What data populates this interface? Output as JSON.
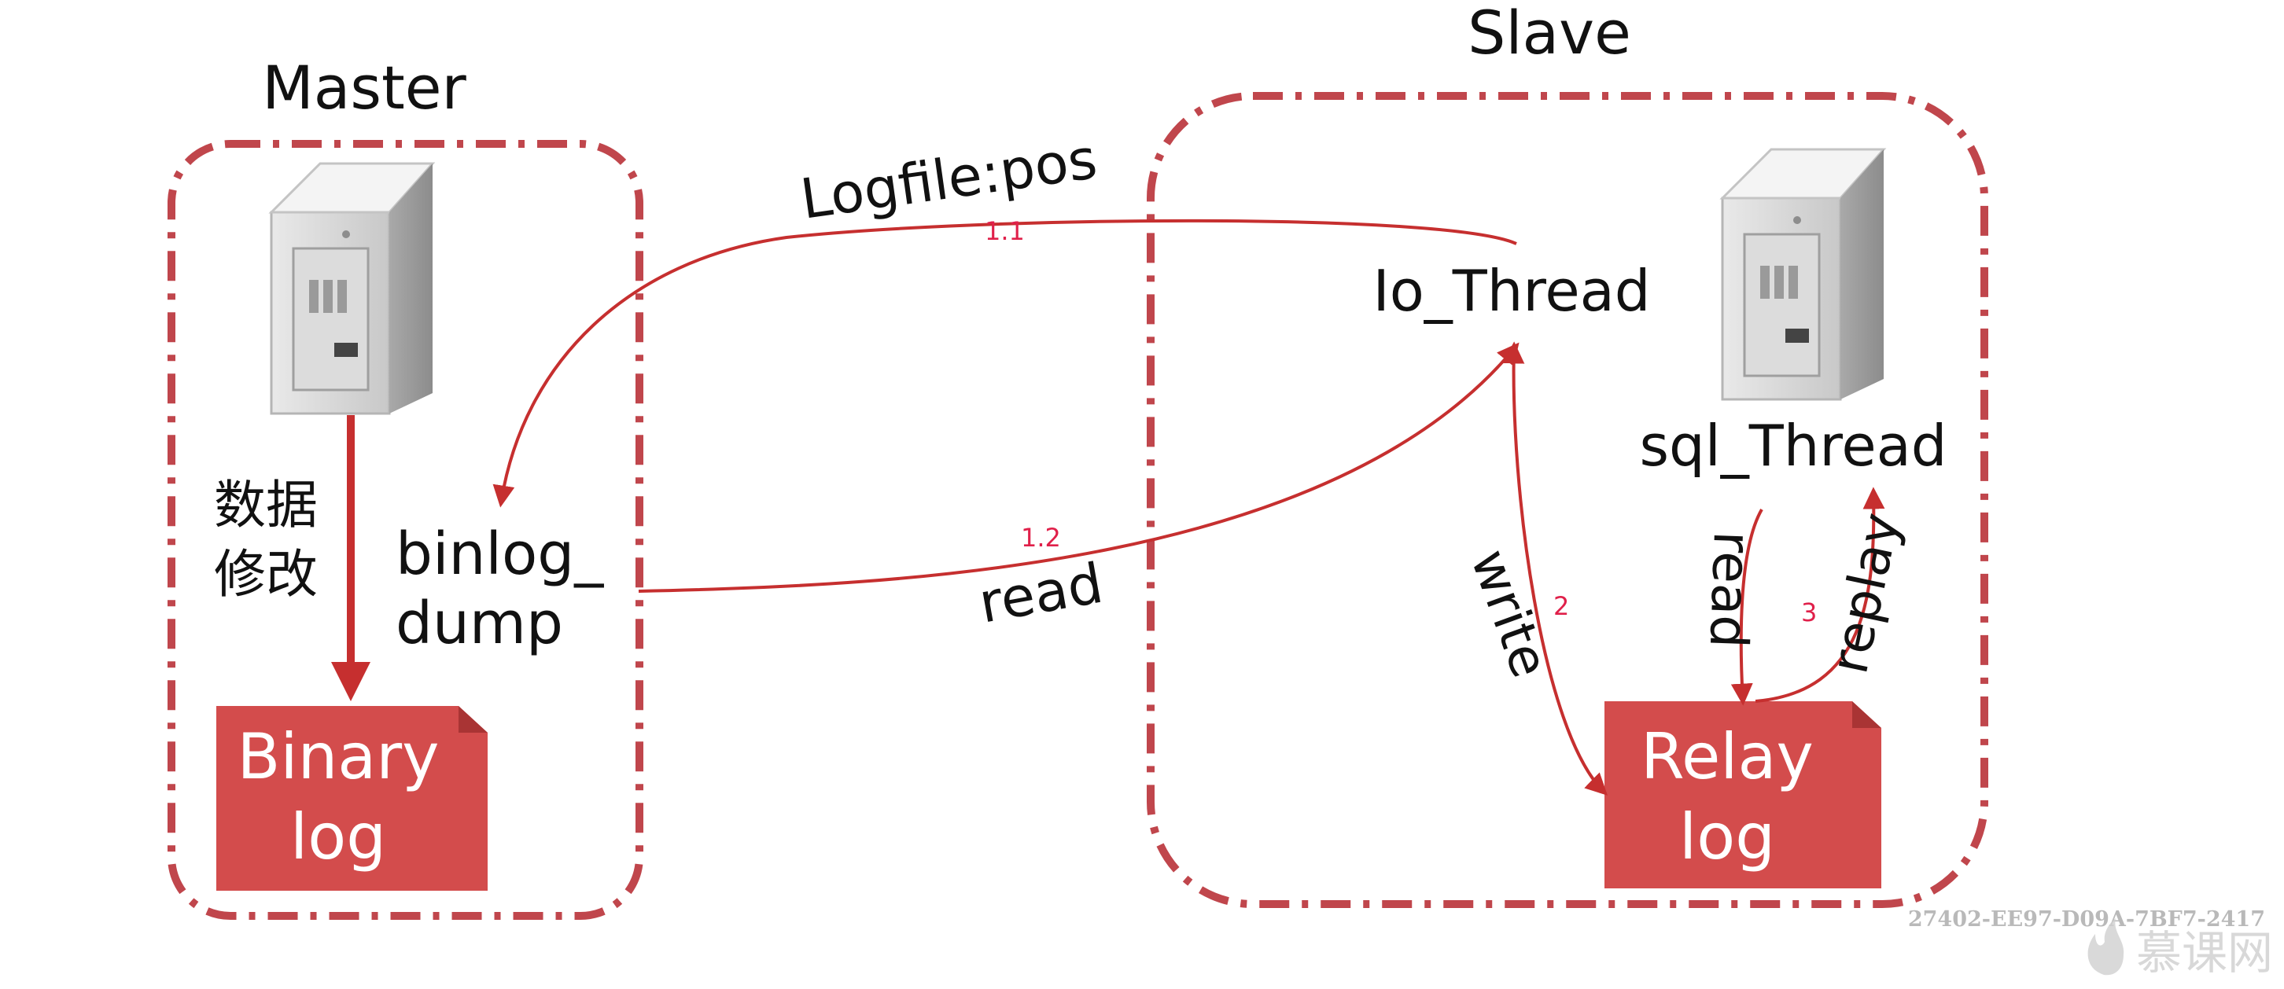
{
  "colors": {
    "accent": "#c62f2f",
    "doc_fill": "#d34c4c",
    "border_dash": "#c0464c",
    "text": "#111111",
    "step_number": "#e0204a",
    "watermark": "#b9b9b9"
  },
  "master": {
    "title": "Master",
    "server_icon": "server-icon",
    "data_change_line1": "数据",
    "data_change_line2": "修改",
    "binlog_dump_line1": "binlog_",
    "binlog_dump_line2": "dump",
    "binary_log_line1": "Binary",
    "binary_log_line2": "log"
  },
  "slave": {
    "title": "Slave",
    "server_icon": "server-icon",
    "io_thread": "Io_Thread",
    "sql_thread": "sql_Thread",
    "relay_log_line1": "Relay",
    "relay_log_line2": "log"
  },
  "edges": {
    "logfile_pos": "Logfile:pos",
    "step_1_1": "1.1",
    "read_master": "read",
    "step_1_2": "1.2",
    "write": "write",
    "step_2": "2",
    "read_relay": "read",
    "step_3": "3",
    "replay": "replay"
  },
  "watermark": {
    "code": "27402-EE97-D09A-7BF7-2417",
    "brand": "慕课网"
  }
}
